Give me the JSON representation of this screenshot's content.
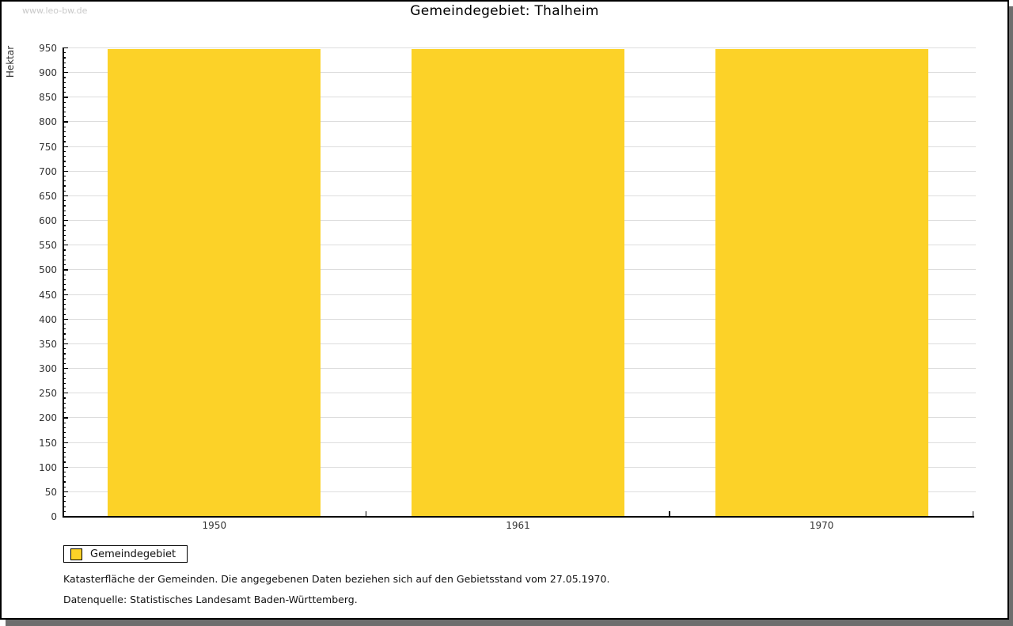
{
  "page": {
    "watermark": "www.leo-bw.de",
    "title": "Gemeindegebiet: Thalheim",
    "footnote_line1": "Katasterfläche der Gemeinden. Die angegebenen Daten beziehen sich auf den Gebietsstand vom 27.05.1970.",
    "footnote_line2": "Datenquelle: Statistisches Landesamt Baden-Württemberg."
  },
  "legend": {
    "label": "Gemeindegebiet",
    "swatch_color": "#fcd228"
  },
  "chart_data": {
    "type": "bar",
    "title": "Gemeindegebiet: Thalheim",
    "categories": [
      "1950",
      "1961",
      "1970"
    ],
    "series": [
      {
        "name": "Gemeindegebiet",
        "values": [
          946,
          946,
          946
        ]
      }
    ],
    "xlabel": "",
    "ylabel": "Hektar",
    "ylim": [
      0,
      950
    ],
    "ytick_step": 50,
    "yminor_step": 10,
    "grid": true,
    "legend_position": "bottom-left",
    "bar_color": "#fcd228",
    "gridline_color": "#dddddd",
    "axis_color": "#000000",
    "tick_label_color": "#333333"
  }
}
